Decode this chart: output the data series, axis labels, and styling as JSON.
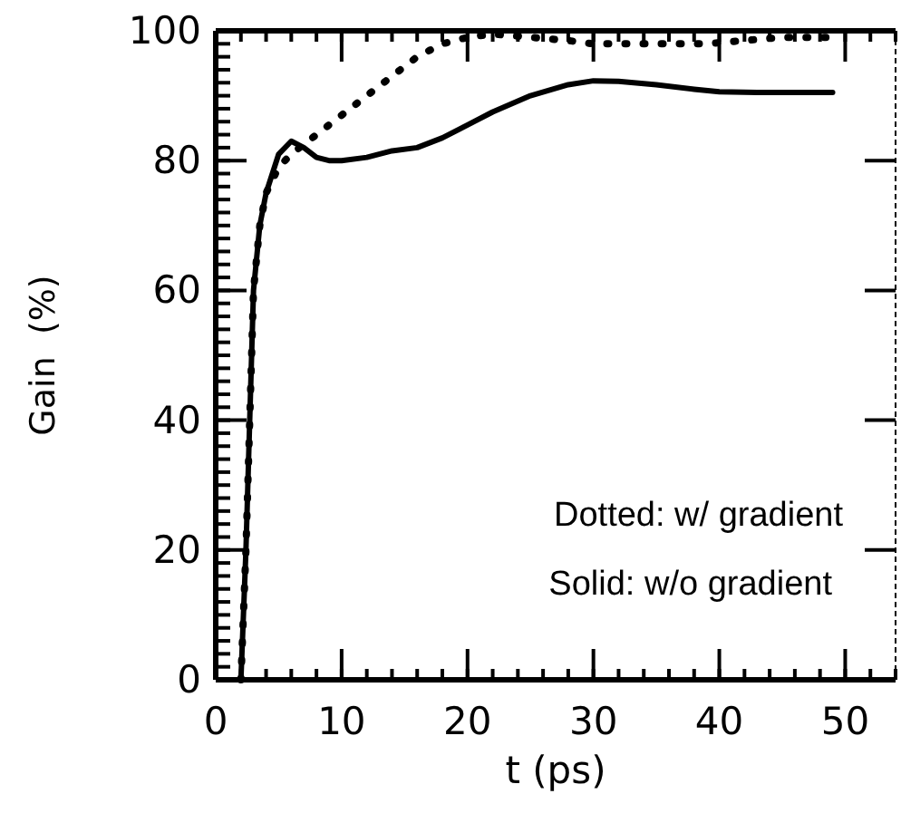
{
  "chart_data": {
    "type": "line",
    "xlabel": "t  (ps)",
    "ylabel": "Gain  (%)",
    "xlim": [
      0,
      54
    ],
    "ylim": [
      0,
      100
    ],
    "xticks": [
      0,
      10,
      20,
      30,
      40,
      50
    ],
    "yticks": [
      0,
      20,
      40,
      60,
      80,
      100
    ],
    "grid": false,
    "marker": "none",
    "annotations": [
      "Dotted: w/ gradient",
      "Solid: w/o gradient"
    ],
    "series": [
      {
        "color": "#000000",
        "line_style": "dotted",
        "x": [
          2,
          2.4,
          2.7,
          3,
          3.5,
          4,
          5,
          6,
          8,
          10,
          12,
          14,
          16,
          18,
          20,
          22,
          25,
          28,
          30,
          33,
          36,
          39,
          42,
          45,
          49
        ],
        "values": [
          0,
          20,
          40,
          60,
          70,
          75,
          79,
          81,
          84,
          87,
          90,
          93,
          96,
          98,
          99,
          99.5,
          99,
          98.5,
          98,
          98,
          98,
          98,
          98.5,
          99,
          99
        ]
      },
      {
        "color": "#000000",
        "line_style": "solid",
        "x": [
          2,
          2.4,
          2.7,
          3,
          3.5,
          4,
          5,
          6,
          7,
          8,
          9,
          10,
          12,
          14,
          16,
          18,
          20,
          22,
          25,
          28,
          30,
          32,
          35,
          38,
          40,
          43,
          46,
          49
        ],
        "values": [
          0,
          20,
          40,
          60,
          70,
          75,
          81,
          83,
          82,
          80.5,
          80,
          80,
          80.5,
          81.5,
          82,
          83.5,
          85.5,
          87.5,
          90,
          91.7,
          92.3,
          92.2,
          91.7,
          91,
          90.6,
          90.5,
          90.5,
          90.5
        ]
      }
    ]
  }
}
